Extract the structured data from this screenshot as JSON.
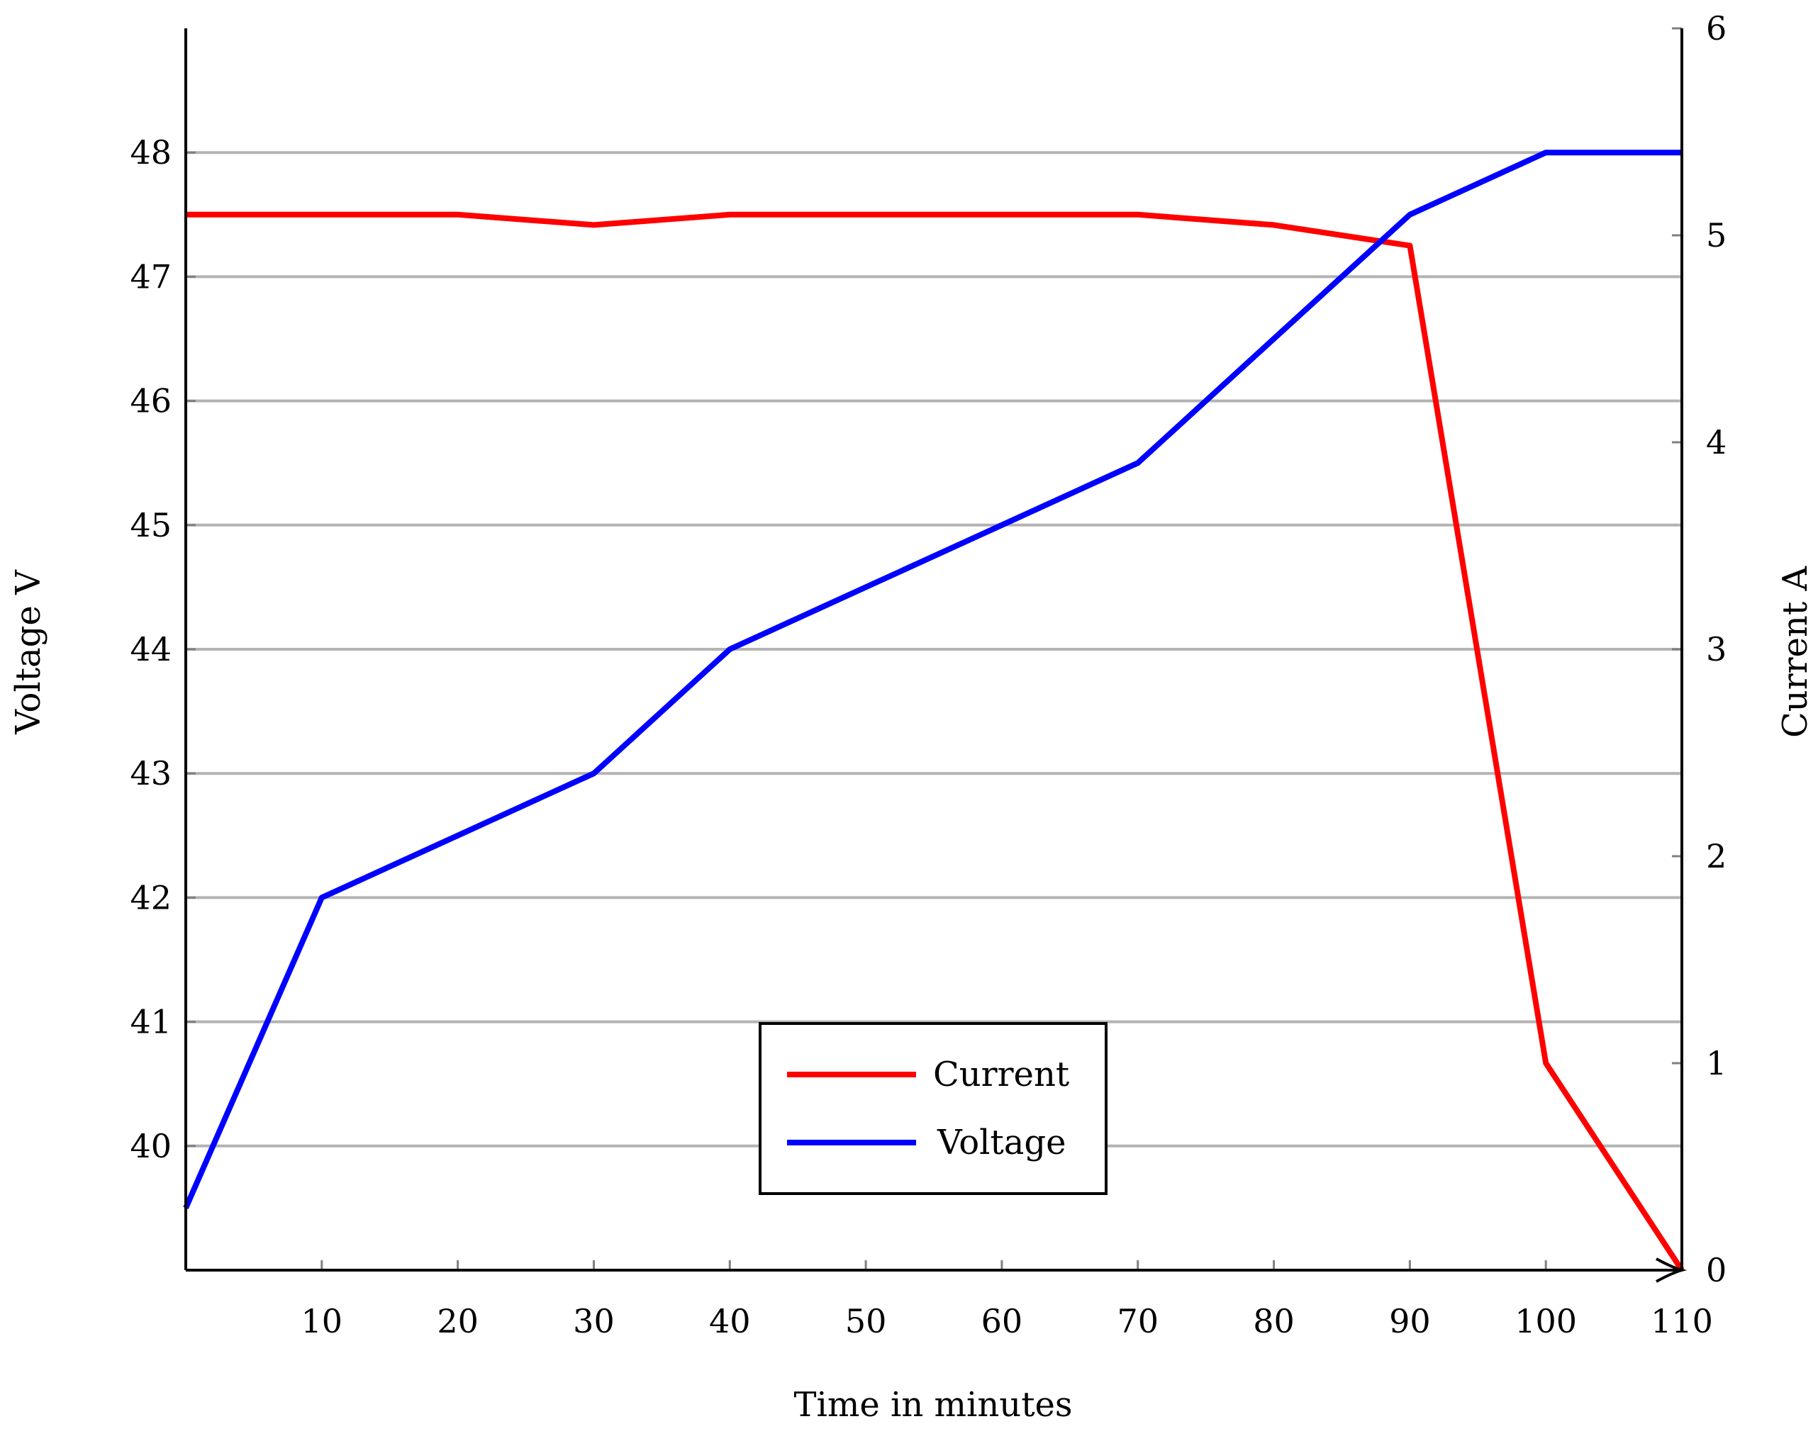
{
  "chart_data": {
    "type": "line",
    "title": "",
    "xlabel": "Time in minutes",
    "ylabel_left": "Voltage V",
    "ylabel_right": "Current A",
    "xlim": [
      0,
      110
    ],
    "ylim_left": [
      39,
      49
    ],
    "ylim_right": [
      0,
      6
    ],
    "x_ticks": [
      10,
      20,
      30,
      40,
      50,
      60,
      70,
      80,
      90,
      100,
      110
    ],
    "x_tick_labels": [
      "10",
      "20",
      "30",
      "40",
      "50",
      "60",
      "70",
      "80",
      "90",
      "100",
      "110"
    ],
    "y_left_ticks": [
      40,
      41,
      42,
      43,
      44,
      45,
      46,
      47,
      48
    ],
    "y_left_tick_labels": [
      "40",
      "41",
      "42",
      "43",
      "44",
      "45",
      "46",
      "47",
      "48"
    ],
    "y_right_ticks": [
      0,
      1,
      2,
      3,
      4,
      5,
      6
    ],
    "y_right_tick_labels": [
      "0",
      "1",
      "2",
      "3",
      "4",
      "5",
      "6"
    ],
    "grid": "horizontal",
    "legend_position": "bottom-center",
    "series": [
      {
        "name": "Current",
        "axis": "right",
        "color": "#ff0000",
        "x": [
          0,
          10,
          20,
          30,
          40,
          50,
          60,
          70,
          80,
          90,
          100,
          110
        ],
        "y": [
          5.1,
          5.1,
          5.1,
          5.05,
          5.1,
          5.1,
          5.1,
          5.1,
          5.05,
          4.95,
          1.0,
          0.0
        ]
      },
      {
        "name": "Voltage",
        "axis": "left",
        "color": "#0000ff",
        "x": [
          0,
          10,
          20,
          30,
          40,
          50,
          60,
          70,
          80,
          90,
          100,
          110
        ],
        "y": [
          39.5,
          42.0,
          42.5,
          43.0,
          44.0,
          44.5,
          45.0,
          45.5,
          46.5,
          47.5,
          48.0,
          48.0
        ]
      }
    ]
  }
}
